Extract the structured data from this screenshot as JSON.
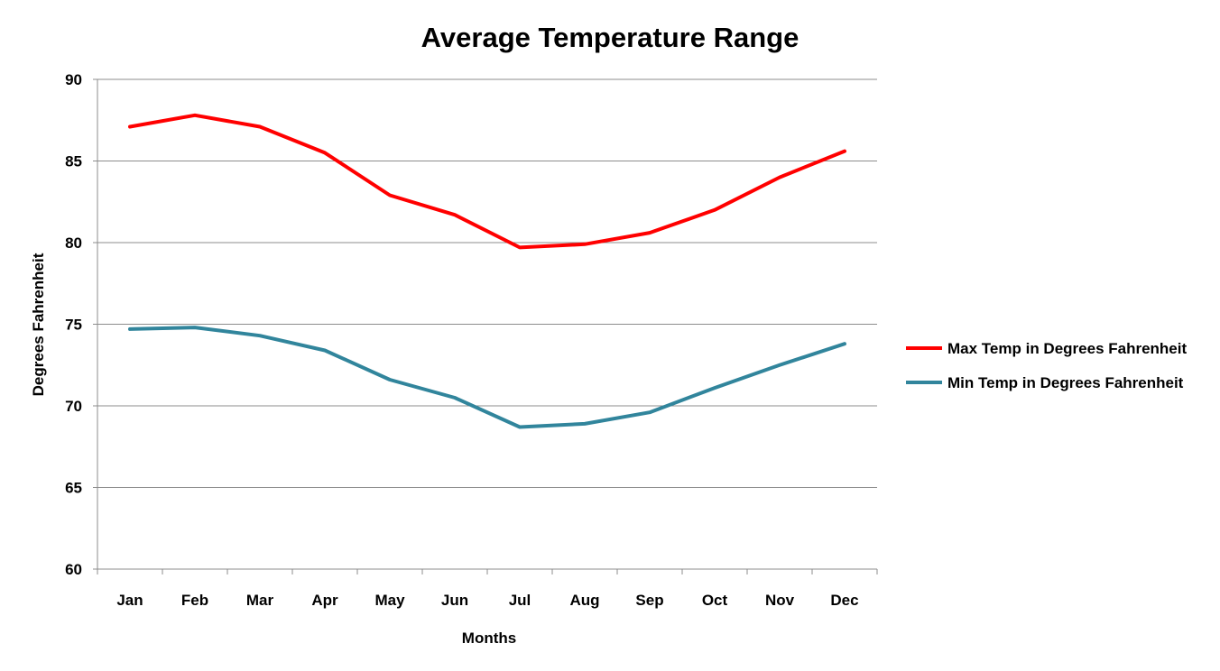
{
  "chart_data": {
    "type": "line",
    "title": "Average Temperature Range",
    "xlabel": "Months",
    "ylabel": "Degrees Fahrenheit",
    "ylim": [
      60,
      90
    ],
    "ytick_step": 5,
    "yticks": [
      "60",
      "65",
      "70",
      "75",
      "80",
      "85",
      "90"
    ],
    "grid": true,
    "legend_position": "right",
    "categories": [
      "Jan",
      "Feb",
      "Mar",
      "Apr",
      "May",
      "Jun",
      "Jul",
      "Aug",
      "Sep",
      "Oct",
      "Nov",
      "Dec"
    ],
    "series": [
      {
        "name": "Max Temp in Degrees Fahrenheit",
        "color": "#ff0000",
        "values": [
          87.1,
          87.8,
          87.1,
          85.5,
          82.9,
          81.7,
          79.7,
          79.9,
          80.6,
          82.0,
          84.0,
          85.6
        ]
      },
      {
        "name": "Min Temp in Degrees Fahrenheit",
        "color": "#31859c",
        "values": [
          74.7,
          74.8,
          74.3,
          73.4,
          71.6,
          70.5,
          68.7,
          68.9,
          69.6,
          71.1,
          72.5,
          73.8
        ]
      }
    ]
  }
}
